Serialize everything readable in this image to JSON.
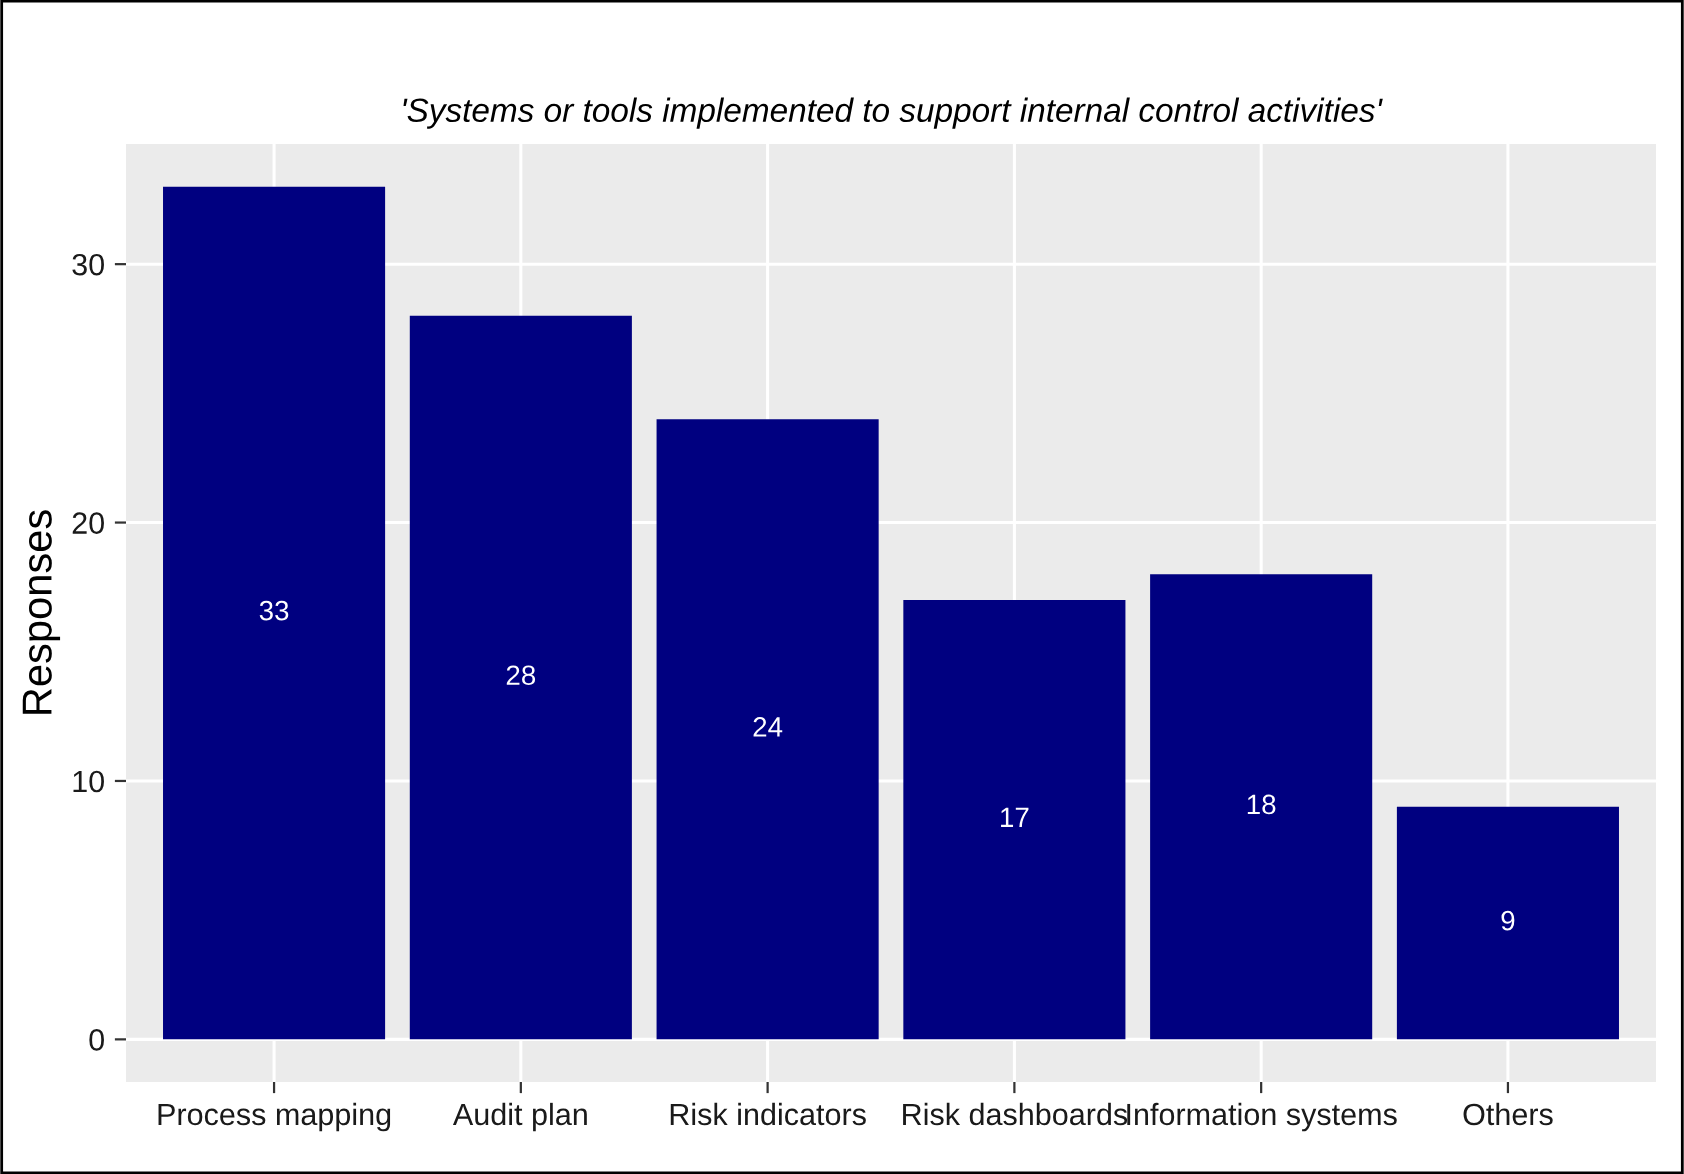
{
  "chart_data": {
    "type": "bar",
    "title": "'Systems or tools implemented to support internal control activities'",
    "ylabel": "Responses",
    "categories": [
      "Process mapping",
      "Audit plan",
      "Risk indicators",
      "Risk dashboards",
      "Information systems",
      "Others"
    ],
    "values": [
      33,
      28,
      24,
      17,
      18,
      9
    ],
    "color": "#000080",
    "ylim": [
      -1.65,
      34.65
    ],
    "yticks": [
      0,
      10,
      20,
      30
    ],
    "grid": true,
    "data_labels": true
  }
}
